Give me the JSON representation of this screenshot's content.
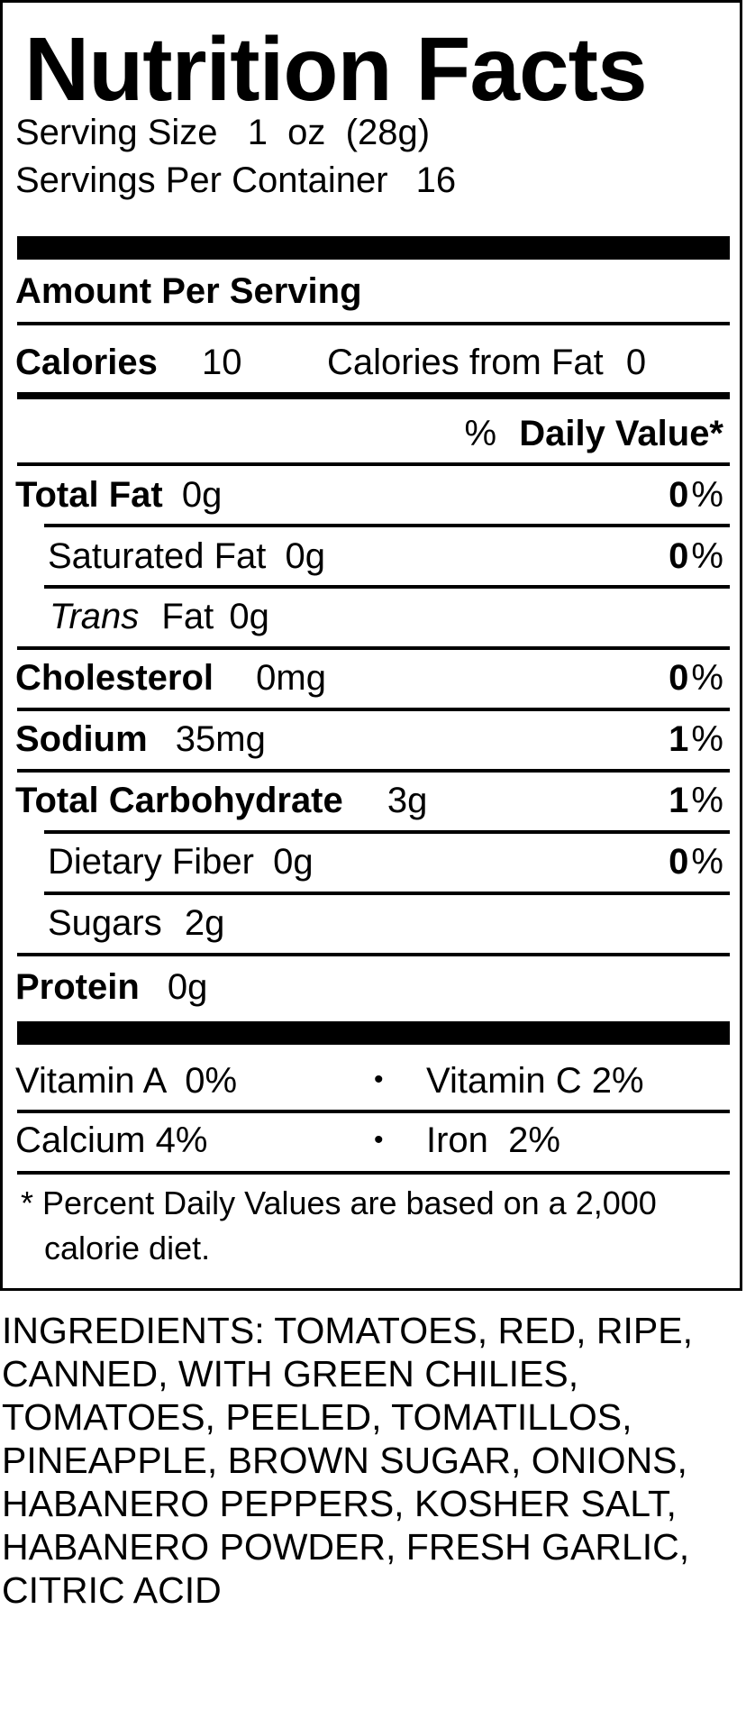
{
  "label": {
    "title": "Nutrition Facts",
    "serving_size_label": "Serving Size",
    "serving_size_value": "1  oz  (28g)",
    "servings_label": "Servings Per Container",
    "servings_value": "16",
    "amount_per_serving": "Amount Per Serving",
    "calories_label": "Calories",
    "calories_value": "10",
    "calories_fat_label": "Calories from Fat",
    "calories_fat_value": "0",
    "dv_prefix": "%",
    "dv_header": "Daily Value*",
    "nutrients": {
      "total_fat": {
        "label": "Total Fat",
        "amount": "0g",
        "pct": "0",
        "pct_sign": "%"
      },
      "saturated_fat": {
        "label": "Saturated Fat",
        "amount": "0g",
        "pct": "0",
        "pct_sign": "%"
      },
      "trans_fat": {
        "label": "Trans",
        "label2": "Fat",
        "amount": "0g"
      },
      "cholesterol": {
        "label": "Cholesterol",
        "amount": "0mg",
        "pct": "0",
        "pct_sign": "%"
      },
      "sodium": {
        "label": "Sodium",
        "amount": "35mg",
        "pct": "1",
        "pct_sign": "%"
      },
      "total_carb": {
        "label": "Total Carbohydrate",
        "amount": "3g",
        "pct": "1",
        "pct_sign": "%"
      },
      "dietary_fiber": {
        "label": "Dietary Fiber",
        "amount": "0g",
        "pct": "0",
        "pct_sign": "%"
      },
      "sugars": {
        "label": "Sugars",
        "amount": "2g"
      },
      "protein": {
        "label": "Protein",
        "amount": "0g"
      }
    },
    "vitamins": {
      "vitamin_a": "Vitamin A  0%",
      "vitamin_c": "Vitamin C 2%",
      "calcium": "Calcium 4%",
      "iron": "Iron  2%",
      "bullet": "•"
    },
    "footnote_line1": "* Percent Daily Values are based on a 2,000",
    "footnote_line2": "calorie diet."
  },
  "ingredients": "INGREDIENTS: TOMATOES, RED, RIPE,\nCANNED, WITH GREEN CHILIES,\nTOMATOES, PEELED, TOMATILLOS,\nPINEAPPLE, BROWN SUGAR, ONIONS,\nHABANERO PEPPERS, KOSHER SALT,\nHABANERO POWDER, FRESH GARLIC,\nCITRIC ACID"
}
